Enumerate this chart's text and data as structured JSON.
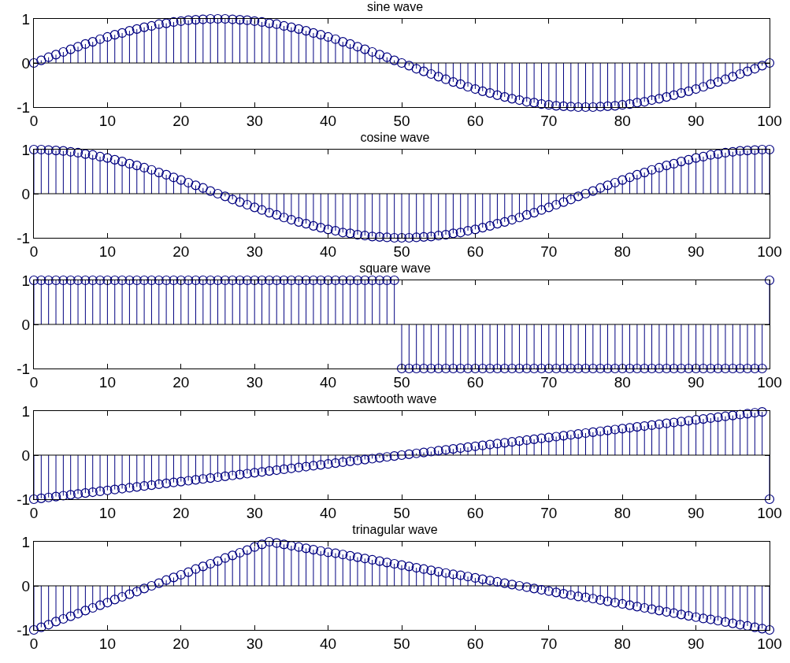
{
  "chart_data": [
    {
      "type": "lollipop",
      "title": "sine wave",
      "color": "#000080",
      "marker": "circle",
      "xlim": [
        0,
        100
      ],
      "xticks": [
        0,
        10,
        20,
        30,
        40,
        50,
        60,
        70,
        80,
        90,
        100
      ],
      "ylim": [
        -1,
        1
      ],
      "yticks": [
        -1,
        0,
        1
      ],
      "x": [
        0,
        1,
        2,
        3,
        4,
        5,
        6,
        7,
        8,
        9,
        10,
        11,
        12,
        13,
        14,
        15,
        16,
        17,
        18,
        19,
        20,
        21,
        22,
        23,
        24,
        25,
        26,
        27,
        28,
        29,
        30,
        31,
        32,
        33,
        34,
        35,
        36,
        37,
        38,
        39,
        40,
        41,
        42,
        43,
        44,
        45,
        46,
        47,
        48,
        49,
        50,
        51,
        52,
        53,
        54,
        55,
        56,
        57,
        58,
        59,
        60,
        61,
        62,
        63,
        64,
        65,
        66,
        67,
        68,
        69,
        70,
        71,
        72,
        73,
        74,
        75,
        76,
        77,
        78,
        79,
        80,
        81,
        82,
        83,
        84,
        85,
        86,
        87,
        88,
        89,
        90,
        91,
        92,
        93,
        94,
        95,
        96,
        97,
        98,
        99,
        100
      ],
      "values": [
        0,
        0.06,
        0.13,
        0.19,
        0.25,
        0.31,
        0.37,
        0.43,
        0.48,
        0.54,
        0.59,
        0.64,
        0.68,
        0.73,
        0.77,
        0.81,
        0.84,
        0.88,
        0.9,
        0.93,
        0.95,
        0.97,
        0.98,
        0.99,
        1,
        1,
        1,
        0.99,
        0.98,
        0.97,
        0.95,
        0.93,
        0.9,
        0.88,
        0.84,
        0.81,
        0.77,
        0.73,
        0.68,
        0.64,
        0.59,
        0.54,
        0.48,
        0.43,
        0.37,
        0.31,
        0.25,
        0.19,
        0.13,
        0.06,
        0,
        -0.06,
        -0.13,
        -0.19,
        -0.25,
        -0.31,
        -0.37,
        -0.43,
        -0.48,
        -0.54,
        -0.59,
        -0.64,
        -0.68,
        -0.73,
        -0.77,
        -0.81,
        -0.84,
        -0.88,
        -0.9,
        -0.93,
        -0.95,
        -0.97,
        -0.98,
        -0.99,
        -1,
        -1,
        -1,
        -0.99,
        -0.98,
        -0.97,
        -0.95,
        -0.93,
        -0.9,
        -0.88,
        -0.84,
        -0.81,
        -0.77,
        -0.73,
        -0.68,
        -0.64,
        -0.59,
        -0.54,
        -0.48,
        -0.43,
        -0.37,
        -0.31,
        -0.25,
        -0.19,
        -0.13,
        -0.06,
        0
      ]
    },
    {
      "type": "lollipop",
      "title": "cosine wave",
      "color": "#000080",
      "marker": "circle",
      "xlim": [
        0,
        100
      ],
      "xticks": [
        0,
        10,
        20,
        30,
        40,
        50,
        60,
        70,
        80,
        90,
        100
      ],
      "ylim": [
        -1,
        1
      ],
      "yticks": [
        -1,
        0,
        1
      ],
      "x": [
        0,
        1,
        2,
        3,
        4,
        5,
        6,
        7,
        8,
        9,
        10,
        11,
        12,
        13,
        14,
        15,
        16,
        17,
        18,
        19,
        20,
        21,
        22,
        23,
        24,
        25,
        26,
        27,
        28,
        29,
        30,
        31,
        32,
        33,
        34,
        35,
        36,
        37,
        38,
        39,
        40,
        41,
        42,
        43,
        44,
        45,
        46,
        47,
        48,
        49,
        50,
        51,
        52,
        53,
        54,
        55,
        56,
        57,
        58,
        59,
        60,
        61,
        62,
        63,
        64,
        65,
        66,
        67,
        68,
        69,
        70,
        71,
        72,
        73,
        74,
        75,
        76,
        77,
        78,
        79,
        80,
        81,
        82,
        83,
        84,
        85,
        86,
        87,
        88,
        89,
        90,
        91,
        92,
        93,
        94,
        95,
        96,
        97,
        98,
        99,
        100
      ],
      "values": [
        1,
        1,
        0.99,
        0.98,
        0.97,
        0.95,
        0.93,
        0.9,
        0.88,
        0.84,
        0.81,
        0.77,
        0.73,
        0.68,
        0.64,
        0.59,
        0.54,
        0.48,
        0.43,
        0.37,
        0.31,
        0.25,
        0.19,
        0.13,
        0.06,
        0,
        -0.06,
        -0.13,
        -0.19,
        -0.25,
        -0.31,
        -0.37,
        -0.43,
        -0.48,
        -0.54,
        -0.59,
        -0.64,
        -0.68,
        -0.73,
        -0.77,
        -0.81,
        -0.84,
        -0.88,
        -0.9,
        -0.93,
        -0.95,
        -0.97,
        -0.98,
        -0.99,
        -1,
        -1,
        -1,
        -0.99,
        -0.98,
        -0.97,
        -0.95,
        -0.93,
        -0.9,
        -0.88,
        -0.84,
        -0.81,
        -0.77,
        -0.73,
        -0.68,
        -0.64,
        -0.59,
        -0.54,
        -0.48,
        -0.43,
        -0.37,
        -0.31,
        -0.25,
        -0.19,
        -0.13,
        -0.06,
        0,
        0.06,
        0.13,
        0.19,
        0.25,
        0.31,
        0.37,
        0.43,
        0.48,
        0.54,
        0.59,
        0.64,
        0.68,
        0.73,
        0.77,
        0.81,
        0.84,
        0.88,
        0.9,
        0.93,
        0.95,
        0.97,
        0.98,
        0.99,
        1,
        1
      ]
    },
    {
      "type": "lollipop",
      "title": "square wave",
      "color": "#000080",
      "marker": "circle",
      "xlim": [
        0,
        100
      ],
      "xticks": [
        0,
        10,
        20,
        30,
        40,
        50,
        60,
        70,
        80,
        90,
        100
      ],
      "ylim": [
        -1,
        1
      ],
      "yticks": [
        -1,
        0,
        1
      ],
      "x": [
        0,
        1,
        2,
        3,
        4,
        5,
        6,
        7,
        8,
        9,
        10,
        11,
        12,
        13,
        14,
        15,
        16,
        17,
        18,
        19,
        20,
        21,
        22,
        23,
        24,
        25,
        26,
        27,
        28,
        29,
        30,
        31,
        32,
        33,
        34,
        35,
        36,
        37,
        38,
        39,
        40,
        41,
        42,
        43,
        44,
        45,
        46,
        47,
        48,
        49,
        50,
        51,
        52,
        53,
        54,
        55,
        56,
        57,
        58,
        59,
        60,
        61,
        62,
        63,
        64,
        65,
        66,
        67,
        68,
        69,
        70,
        71,
        72,
        73,
        74,
        75,
        76,
        77,
        78,
        79,
        80,
        81,
        82,
        83,
        84,
        85,
        86,
        87,
        88,
        89,
        90,
        91,
        92,
        93,
        94,
        95,
        96,
        97,
        98,
        99,
        100
      ],
      "values": [
        1,
        1,
        1,
        1,
        1,
        1,
        1,
        1,
        1,
        1,
        1,
        1,
        1,
        1,
        1,
        1,
        1,
        1,
        1,
        1,
        1,
        1,
        1,
        1,
        1,
        1,
        1,
        1,
        1,
        1,
        1,
        1,
        1,
        1,
        1,
        1,
        1,
        1,
        1,
        1,
        1,
        1,
        1,
        1,
        1,
        1,
        1,
        1,
        1,
        1,
        -1,
        -1,
        -1,
        -1,
        -1,
        -1,
        -1,
        -1,
        -1,
        -1,
        -1,
        -1,
        -1,
        -1,
        -1,
        -1,
        -1,
        -1,
        -1,
        -1,
        -1,
        -1,
        -1,
        -1,
        -1,
        -1,
        -1,
        -1,
        -1,
        -1,
        -1,
        -1,
        -1,
        -1,
        -1,
        -1,
        -1,
        -1,
        -1,
        -1,
        -1,
        -1,
        -1,
        -1,
        -1,
        -1,
        -1,
        -1,
        -1,
        -1,
        1
      ]
    },
    {
      "type": "lollipop",
      "title": "sawtooth wave",
      "color": "#000080",
      "marker": "circle",
      "xlim": [
        0,
        100
      ],
      "xticks": [
        0,
        10,
        20,
        30,
        40,
        50,
        60,
        70,
        80,
        90,
        100
      ],
      "ylim": [
        -1,
        1
      ],
      "yticks": [
        -1,
        0,
        1
      ],
      "x": [
        0,
        1,
        2,
        3,
        4,
        5,
        6,
        7,
        8,
        9,
        10,
        11,
        12,
        13,
        14,
        15,
        16,
        17,
        18,
        19,
        20,
        21,
        22,
        23,
        24,
        25,
        26,
        27,
        28,
        29,
        30,
        31,
        32,
        33,
        34,
        35,
        36,
        37,
        38,
        39,
        40,
        41,
        42,
        43,
        44,
        45,
        46,
        47,
        48,
        49,
        50,
        51,
        52,
        53,
        54,
        55,
        56,
        57,
        58,
        59,
        60,
        61,
        62,
        63,
        64,
        65,
        66,
        67,
        68,
        69,
        70,
        71,
        72,
        73,
        74,
        75,
        76,
        77,
        78,
        79,
        80,
        81,
        82,
        83,
        84,
        85,
        86,
        87,
        88,
        89,
        90,
        91,
        92,
        93,
        94,
        95,
        96,
        97,
        98,
        99,
        100
      ],
      "values": [
        -1,
        -0.98,
        -0.96,
        -0.94,
        -0.92,
        -0.9,
        -0.88,
        -0.86,
        -0.84,
        -0.82,
        -0.8,
        -0.78,
        -0.76,
        -0.74,
        -0.72,
        -0.7,
        -0.68,
        -0.66,
        -0.64,
        -0.62,
        -0.6,
        -0.58,
        -0.56,
        -0.54,
        -0.52,
        -0.5,
        -0.48,
        -0.46,
        -0.44,
        -0.42,
        -0.4,
        -0.38,
        -0.36,
        -0.34,
        -0.32,
        -0.3,
        -0.28,
        -0.26,
        -0.24,
        -0.22,
        -0.2,
        -0.18,
        -0.16,
        -0.14,
        -0.12,
        -0.1,
        -0.08,
        -0.06,
        -0.04,
        -0.02,
        0,
        0.02,
        0.04,
        0.06,
        0.08,
        0.1,
        0.12,
        0.14,
        0.16,
        0.18,
        0.2,
        0.22,
        0.24,
        0.26,
        0.28,
        0.3,
        0.32,
        0.34,
        0.36,
        0.38,
        0.4,
        0.42,
        0.44,
        0.46,
        0.48,
        0.5,
        0.52,
        0.54,
        0.56,
        0.58,
        0.6,
        0.62,
        0.64,
        0.66,
        0.68,
        0.7,
        0.72,
        0.74,
        0.76,
        0.78,
        0.8,
        0.82,
        0.84,
        0.86,
        0.88,
        0.9,
        0.92,
        0.94,
        0.96,
        0.98,
        -1
      ]
    },
    {
      "type": "lollipop",
      "title": "trinagular wave",
      "color": "#000080",
      "marker": "circle",
      "xlim": [
        0,
        100
      ],
      "xticks": [
        0,
        10,
        20,
        30,
        40,
        50,
        60,
        70,
        80,
        90,
        100
      ],
      "ylim": [
        -1,
        1
      ],
      "yticks": [
        -1,
        0,
        1
      ],
      "x": [
        0,
        1,
        2,
        3,
        4,
        5,
        6,
        7,
        8,
        9,
        10,
        11,
        12,
        13,
        14,
        15,
        16,
        17,
        18,
        19,
        20,
        21,
        22,
        23,
        24,
        25,
        26,
        27,
        28,
        29,
        30,
        31,
        32,
        33,
        34,
        35,
        36,
        37,
        38,
        39,
        40,
        41,
        42,
        43,
        44,
        45,
        46,
        47,
        48,
        49,
        50,
        51,
        52,
        53,
        54,
        55,
        56,
        57,
        58,
        59,
        60,
        61,
        62,
        63,
        64,
        65,
        66,
        67,
        68,
        69,
        70,
        71,
        72,
        73,
        74,
        75,
        76,
        77,
        78,
        79,
        80,
        81,
        82,
        83,
        84,
        85,
        86,
        87,
        88,
        89,
        90,
        91,
        92,
        93,
        94,
        95,
        96,
        97,
        98,
        99,
        100
      ],
      "values": [
        -1,
        -0.94,
        -0.88,
        -0.81,
        -0.75,
        -0.69,
        -0.63,
        -0.56,
        -0.5,
        -0.44,
        -0.38,
        -0.31,
        -0.25,
        -0.19,
        -0.13,
        -0.06,
        0,
        0.06,
        0.13,
        0.19,
        0.25,
        0.31,
        0.38,
        0.44,
        0.5,
        0.56,
        0.63,
        0.69,
        0.75,
        0.81,
        0.88,
        0.94,
        1,
        0.97,
        0.94,
        0.91,
        0.88,
        0.85,
        0.82,
        0.79,
        0.76,
        0.74,
        0.71,
        0.68,
        0.65,
        0.62,
        0.59,
        0.56,
        0.53,
        0.5,
        0.47,
        0.44,
        0.41,
        0.38,
        0.35,
        0.32,
        0.29,
        0.26,
        0.24,
        0.21,
        0.18,
        0.15,
        0.12,
        0.09,
        0.06,
        0.03,
        0,
        -0.03,
        -0.06,
        -0.09,
        -0.12,
        -0.15,
        -0.18,
        -0.21,
        -0.24,
        -0.26,
        -0.29,
        -0.32,
        -0.35,
        -0.38,
        -0.41,
        -0.44,
        -0.47,
        -0.5,
        -0.53,
        -0.56,
        -0.59,
        -0.62,
        -0.65,
        -0.68,
        -0.71,
        -0.74,
        -0.76,
        -0.79,
        -0.82,
        -0.85,
        -0.88,
        -0.91,
        -0.94,
        -0.97,
        -1
      ]
    }
  ]
}
